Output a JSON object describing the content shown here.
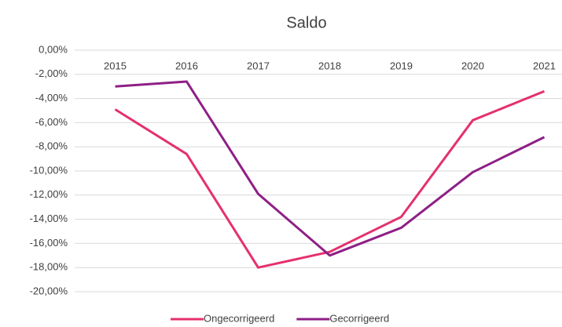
{
  "chart_data": {
    "type": "line",
    "title": "Saldo",
    "categories": [
      "2015",
      "2016",
      "2017",
      "2018",
      "2019",
      "2020",
      "2021"
    ],
    "series": [
      {
        "name": "Ongecorrigeerd",
        "color": "#e5306f",
        "values": [
          -4.9,
          -8.6,
          -18.0,
          -16.7,
          -13.8,
          -5.8,
          -3.4
        ]
      },
      {
        "name": "Gecorrigeerd",
        "color": "#8e1f86",
        "values": [
          -3.0,
          -2.6,
          -11.9,
          -17.0,
          -14.7,
          -10.1,
          -7.2
        ]
      }
    ],
    "ylim": [
      -20,
      0
    ],
    "yticks": [
      {
        "value": 0,
        "label": "0,00%"
      },
      {
        "value": -2,
        "label": "-2,00%"
      },
      {
        "value": -4,
        "label": "-4,00%"
      },
      {
        "value": -6,
        "label": "-6,00%"
      },
      {
        "value": -8,
        "label": "-8,00%"
      },
      {
        "value": -10,
        "label": "-10,00%"
      },
      {
        "value": -12,
        "label": "-12,00%"
      },
      {
        "value": -14,
        "label": "-14,00%"
      },
      {
        "value": -16,
        "label": "-16,00%"
      },
      {
        "value": -18,
        "label": "-18,00%"
      },
      {
        "value": -20,
        "label": "-20,00%"
      }
    ],
    "grid": true,
    "legend": "bottom"
  }
}
